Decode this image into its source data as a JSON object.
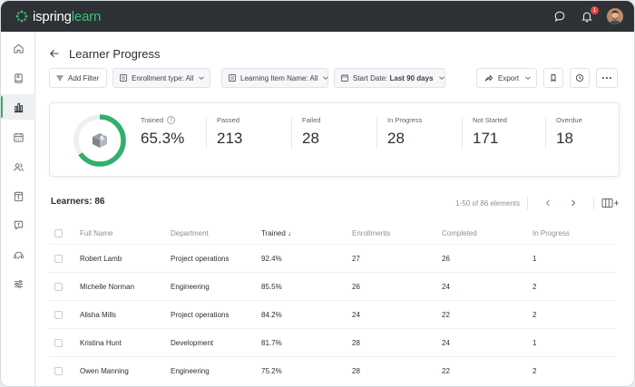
{
  "app": {
    "logo_prefix": "ispring",
    "logo_suffix": "learn",
    "notification_count": "1",
    "colors": {
      "accent": "#30b06a",
      "topbar": "#2e3236",
      "badge": "#e2463f"
    }
  },
  "sidebar": {
    "items": [
      {
        "icon": "home-icon"
      },
      {
        "icon": "book-icon"
      },
      {
        "icon": "bar-chart-icon",
        "active": true
      },
      {
        "icon": "calendar-icon"
      },
      {
        "icon": "users-icon"
      },
      {
        "icon": "clipboard-icon"
      },
      {
        "icon": "message-icon"
      },
      {
        "icon": "support-icon"
      },
      {
        "icon": "sliders-icon"
      }
    ]
  },
  "page": {
    "title": "Learner Progress"
  },
  "toolbar": {
    "add_filter": "Add Filter",
    "enrollment_type_label": "Enrollment type: All",
    "learning_item_label": "Learning Item Name: All",
    "start_date_prefix": "Start Date:",
    "start_date_value": "Last 90 days",
    "export": "Export"
  },
  "stats": {
    "trained_label": "Trained",
    "trained_value": "65.3%",
    "trained_fraction": 0.653,
    "passed_label": "Passed",
    "passed_value": "213",
    "failed_label": "Failed",
    "failed_value": "28",
    "in_progress_label": "In Progress",
    "in_progress_value": "28",
    "not_started_label": "Not Started",
    "not_started_value": "171",
    "overdue_label": "Overdue",
    "overdue_value": "18"
  },
  "learners": {
    "title": "Learners: 86",
    "pagination": "1-50 of 86 elements"
  },
  "table": {
    "headers": {
      "full_name": "Full Name",
      "department": "Department",
      "trained": "Trained ↓",
      "enrollments": "Enrollments",
      "completed": "Completed",
      "in_progress": "In Progress"
    },
    "rows": [
      {
        "name": "Robert Lamb",
        "department": "Project operations",
        "trained": "92.4%",
        "enrollments": "27",
        "completed": "26",
        "in_progress": "1"
      },
      {
        "name": "Michelle Norman",
        "department": "Engineering",
        "trained": "85.5%",
        "enrollments": "26",
        "completed": "24",
        "in_progress": "2"
      },
      {
        "name": "Alisha Mills",
        "department": "Project operations",
        "trained": "84.2%",
        "enrollments": "24",
        "completed": "22",
        "in_progress": "2"
      },
      {
        "name": "Kristina Hunt",
        "department": "Development",
        "trained": "81.7%",
        "enrollments": "28",
        "completed": "24",
        "in_progress": "1"
      },
      {
        "name": "Owen Manning",
        "department": "Engineering",
        "trained": "75.2%",
        "enrollments": "28",
        "completed": "22",
        "in_progress": "2"
      }
    ]
  }
}
